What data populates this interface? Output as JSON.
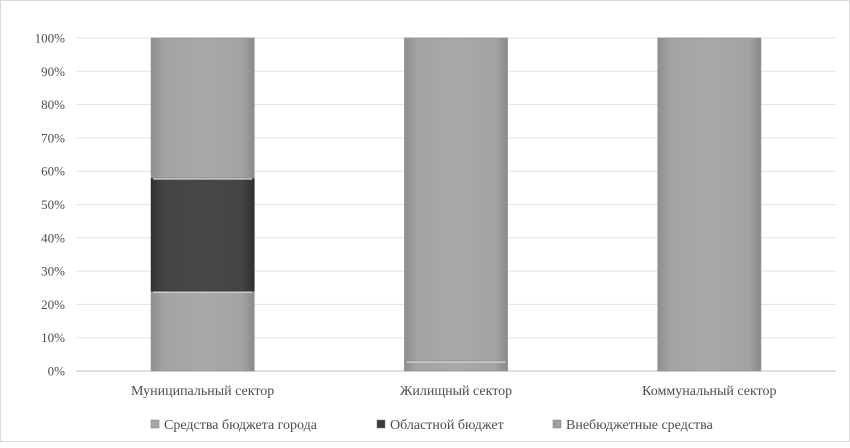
{
  "chart_data": {
    "type": "bar",
    "stacked": "percent",
    "title": "",
    "xlabel": "",
    "ylabel": "",
    "ylim": [
      0,
      100
    ],
    "yticks": [
      "0%",
      "10%",
      "20%",
      "30%",
      "40%",
      "50%",
      "60%",
      "70%",
      "80%",
      "90%",
      "100%"
    ],
    "grid": true,
    "legend_position": "bottom",
    "categories": [
      "Муниципальный сектор",
      "Жилищный сектор",
      "Коммунальный сектор"
    ],
    "series": [
      {
        "name": "Средства бюджета города",
        "values": [
          24,
          3,
          0
        ],
        "color": "#a6a6a6"
      },
      {
        "name": "Областной бюджет",
        "values": [
          34,
          0,
          0
        ],
        "color": "#404040"
      },
      {
        "name": "Внебюджетные средства",
        "values": [
          42,
          97,
          100
        ],
        "color": "#a0a0a0"
      }
    ]
  }
}
